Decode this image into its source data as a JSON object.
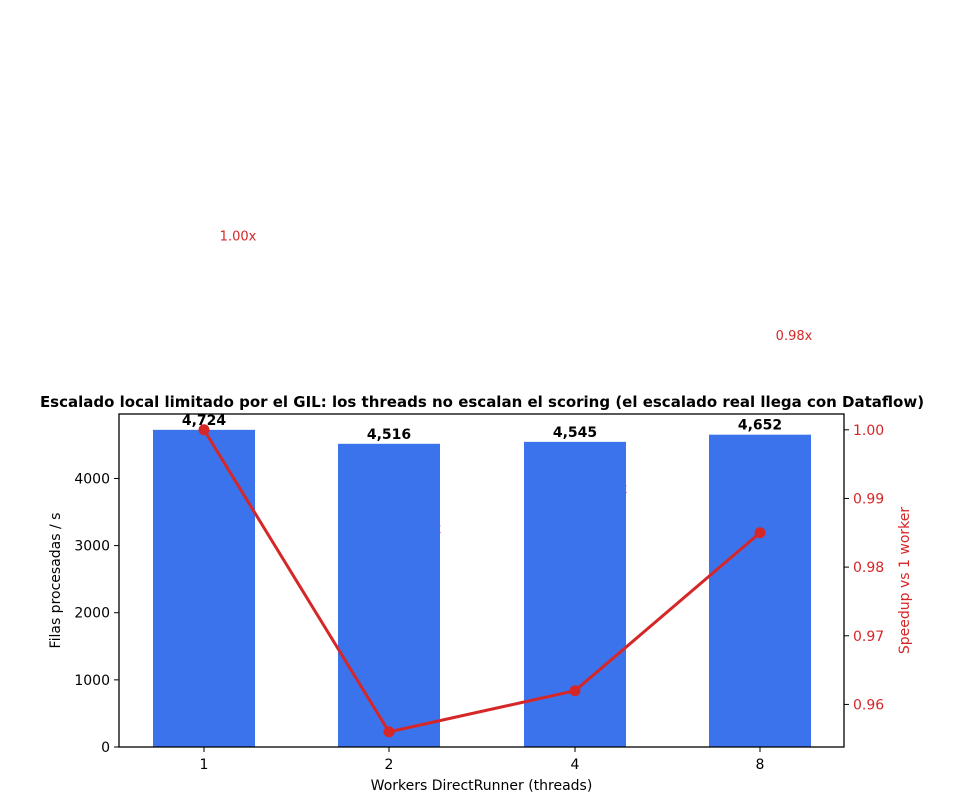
{
  "chart_data": {
    "type": "bar",
    "title": "Escalado local limitado por el GIL: los threads no escalan el scoring (el escalado real llega con Dataflow)",
    "xlabel": "Workers DirectRunner (threads)",
    "ylabel": "Filas procesadas / s",
    "y2label": "Speedup vs 1 worker",
    "categories": [
      "1",
      "2",
      "4",
      "8"
    ],
    "series": [
      {
        "axis": "left",
        "type": "bar",
        "color": "#3b73ed",
        "values": [
          4724,
          4516,
          4545,
          4652
        ],
        "labels": [
          "4,724",
          "4,516",
          "4,545",
          "4,652"
        ]
      },
      {
        "axis": "right",
        "type": "line",
        "color": "#d62728",
        "values": [
          1.0,
          0.956,
          0.962,
          0.985
        ],
        "labels": [
          "1.00x",
          "0.96x",
          "0.96x",
          "0.98x"
        ]
      }
    ],
    "ylim": [
      0,
      4960
    ],
    "yticks": [
      "0",
      "1000",
      "2000",
      "3000",
      "4000"
    ],
    "y2lim": [
      0.9538,
      1.0023
    ],
    "y2ticks": [
      "0.96",
      "0.97",
      "0.98",
      "0.99",
      "1.00"
    ],
    "label_ylim": [
      0.923,
      1.0415
    ],
    "grid": false
  }
}
